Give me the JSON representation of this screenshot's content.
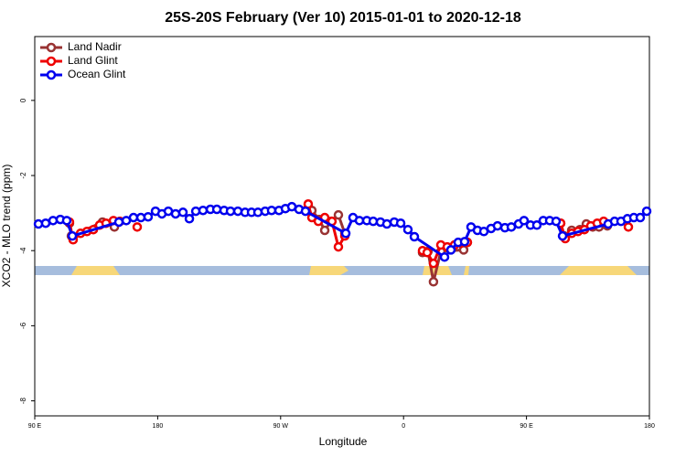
{
  "chart_data": {
    "type": "line",
    "title": "25S-20S February (Ver 10)   2015-01-01 to 2020-12-18",
    "x_label": "Longitude",
    "y_label": "XCO2 - MLO trend (ppm)",
    "xlim": [
      90,
      540
    ],
    "ylim": [
      -8.4,
      1.7
    ],
    "xticks": [
      {
        "value": 90,
        "label": "90 E"
      },
      {
        "value": 180,
        "label": "180"
      },
      {
        "value": 270,
        "label": "90 W"
      },
      {
        "value": 360,
        "label": "0"
      },
      {
        "value": 450,
        "label": "90 E"
      },
      {
        "value": 540,
        "label": "180"
      }
    ],
    "yticks": [
      0,
      -2,
      -4,
      -6,
      -8
    ],
    "legend": "top-left",
    "series": [
      {
        "name": "Ocean Glint",
        "color": "#0000ee",
        "x": [
          92.7,
          98.0,
          103.4,
          108.7,
          113.4,
          117.5,
          151.6,
          157.0,
          162.3,
          167.7,
          173.0,
          178.4,
          183.1,
          187.8,
          193.1,
          198.5,
          203.2,
          207.9,
          213.2,
          218.6,
          223.3,
          228.6,
          233.3,
          238.7,
          244.0,
          248.7,
          253.4,
          258.7,
          263.4,
          268.8,
          273.5,
          278.2,
          283.5,
          288.2,
          317.7,
          323.0,
          327.7,
          333.1,
          337.8,
          343.1,
          347.8,
          353.2,
          357.9,
          363.2,
          367.9,
          390.0,
          394.7,
          400.0,
          404.7,
          409.4,
          414.1,
          418.8,
          424.1,
          428.8,
          434.2,
          438.9,
          444.2,
          448.2,
          452.9,
          457.6,
          462.3,
          467.0,
          471.7,
          476.4,
          509.8,
          514.5,
          519.2,
          523.9,
          528.6,
          533.3,
          538.0
        ],
        "values": [
          -3.29,
          -3.27,
          -3.2,
          -3.17,
          -3.2,
          -3.61,
          -3.24,
          -3.2,
          -3.12,
          -3.12,
          -3.1,
          -2.95,
          -3.02,
          -2.95,
          -3.02,
          -2.98,
          -3.15,
          -2.95,
          -2.93,
          -2.9,
          -2.9,
          -2.93,
          -2.95,
          -2.95,
          -2.98,
          -2.98,
          -2.98,
          -2.95,
          -2.93,
          -2.93,
          -2.88,
          -2.83,
          -2.9,
          -2.95,
          -3.54,
          -3.12,
          -3.2,
          -3.2,
          -3.22,
          -3.24,
          -3.29,
          -3.24,
          -3.27,
          -3.44,
          -3.63,
          -4.17,
          -3.98,
          -3.78,
          -3.76,
          -3.37,
          -3.46,
          -3.49,
          -3.41,
          -3.34,
          -3.39,
          -3.37,
          -3.29,
          -3.2,
          -3.32,
          -3.32,
          -3.2,
          -3.2,
          -3.22,
          -3.61,
          -3.29,
          -3.22,
          -3.22,
          -3.15,
          -3.12,
          -3.12,
          -2.95
        ]
      },
      {
        "name": "Land Nadir",
        "color": "#993333",
        "x": [
          115.4,
          116.8,
          139.6,
          148.3,
          null,
          290.2,
          292.9,
          298.2,
          302.3,
          307.0,
          312.3,
          317.0,
          null,
          373.9,
          377.9,
          381.9,
          387.3,
          404.0,
          406.7,
          null,
          475.0,
          477.7,
          483.1,
          489.1,
          493.8,
          498.5,
          503.1,
          509.2
        ],
        "values": [
          -3.27,
          -3.61,
          -3.24,
          -3.37,
          null,
          -2.83,
          -2.93,
          -3.17,
          -3.46,
          -3.22,
          -3.05,
          -3.54,
          null,
          -4.05,
          -4.02,
          -4.83,
          -4.02,
          -3.98,
          -3.78,
          null,
          -3.27,
          -3.61,
          -3.46,
          -3.44,
          -3.29,
          -3.37,
          -3.37,
          -3.34
        ]
      },
      {
        "name": "Land Glint",
        "color": "#ee0000",
        "x": [
          115.4,
          118.1,
          123.5,
          128.2,
          132.9,
          137.5,
          142.2,
          147.6,
          152.3,
          null,
          165.0,
          null,
          290.2,
          292.9,
          297.6,
          302.3,
          307.6,
          312.3,
          317.0,
          null,
          373.9,
          377.3,
          381.9,
          387.3,
          392.0,
          397.3,
          402.0,
          406.7,
          null,
          475.0,
          478.4,
          483.1,
          487.7,
          492.4,
          497.1,
          501.8,
          506.5,
          null,
          524.6
        ],
        "values": [
          -3.24,
          -3.71,
          -3.54,
          -3.49,
          -3.44,
          -3.32,
          -3.27,
          -3.2,
          -3.22,
          null,
          -3.37,
          null,
          -2.76,
          -3.12,
          -3.22,
          -3.12,
          -3.22,
          -3.9,
          -3.61,
          null,
          -4.0,
          -4.05,
          -4.34,
          -3.85,
          -3.9,
          -3.85,
          -3.8,
          -3.78,
          null,
          -3.27,
          -3.68,
          -3.54,
          -3.49,
          -3.44,
          -3.34,
          -3.27,
          -3.22,
          null,
          -3.37
        ]
      }
    ]
  }
}
